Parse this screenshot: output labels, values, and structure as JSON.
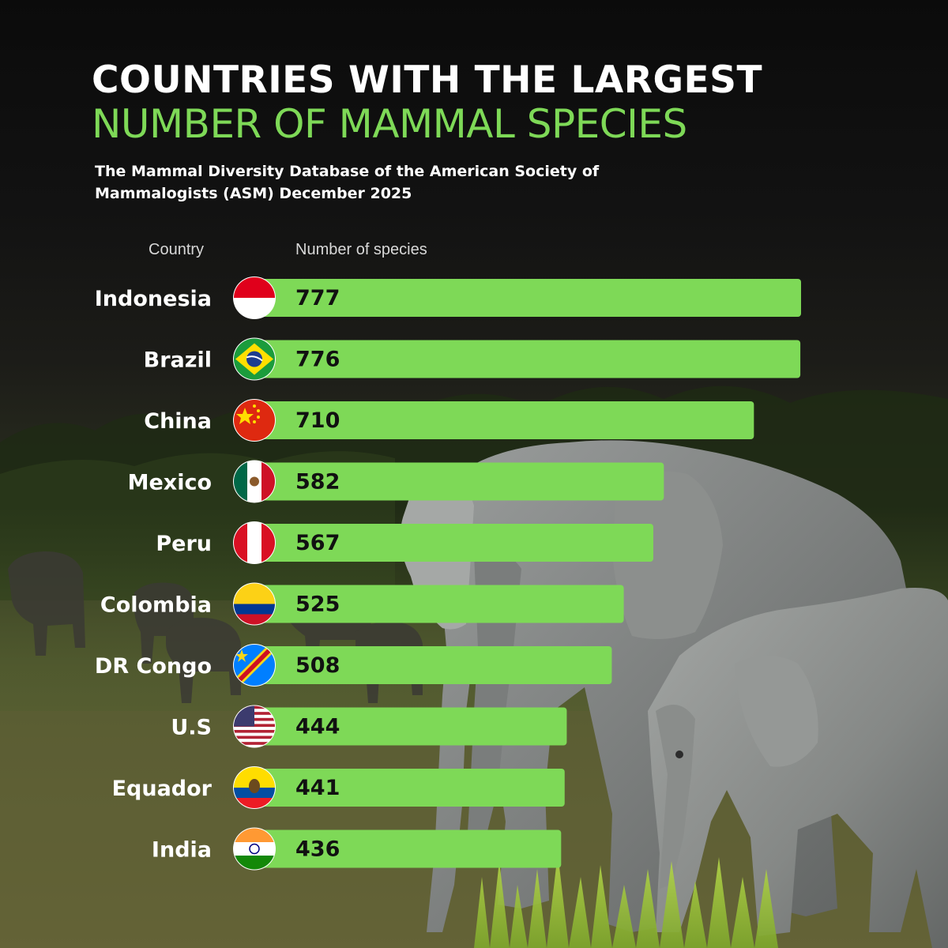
{
  "header": {
    "title_line1": "COUNTRIES WITH THE LARGEST",
    "title_line2": "NUMBER OF MAMMAL SPECIES",
    "subtitle": "The Mammal Diversity Database of the American Society of Mammalogists (ASM) December 2025"
  },
  "colors": {
    "bar": "#7ed957",
    "title_accent": "#7ed957",
    "background": "#111111"
  },
  "chart_data": {
    "type": "bar",
    "orientation": "horizontal",
    "category_header": "Country",
    "value_header": "Number of species",
    "categories": [
      "Indonesia",
      "Brazil",
      "China",
      "Mexico",
      "Peru",
      "Colombia",
      "DR Congo",
      "U.S",
      "Equador",
      "India"
    ],
    "values": [
      777,
      776,
      710,
      582,
      567,
      525,
      508,
      444,
      441,
      436
    ],
    "flags": [
      "indonesia-flag-icon",
      "brazil-flag-icon",
      "china-flag-icon",
      "mexico-flag-icon",
      "peru-flag-icon",
      "colombia-flag-icon",
      "dr-congo-flag-icon",
      "us-flag-icon",
      "ecuador-flag-icon",
      "india-flag-icon"
    ],
    "grid": false,
    "legend": "none"
  }
}
